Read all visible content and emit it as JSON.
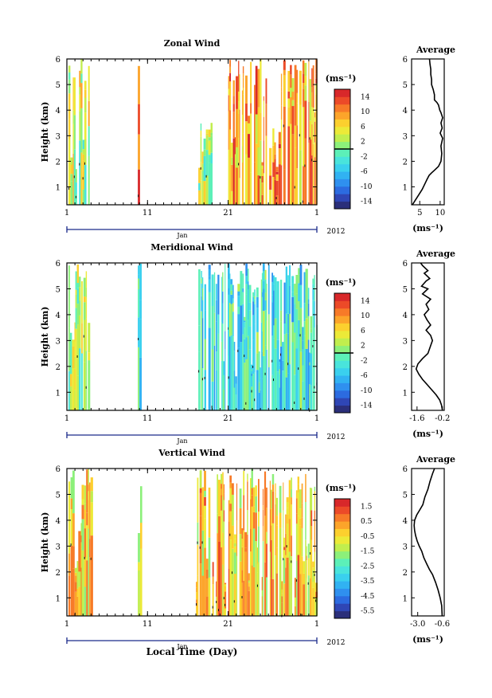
{
  "figure": {
    "year_label": "2012",
    "month_label": "Jan",
    "xlabel": "Local Time (Day)"
  },
  "panels": [
    {
      "title": "Zonal Wind",
      "ylabel": "Height (km)",
      "unit": "(ms⁻¹)",
      "avg_title": "Average",
      "avg_xlabel": "(ms⁻¹)",
      "x_ticks": [
        "1",
        "11",
        "21",
        "1"
      ],
      "y_ticks": [
        "1",
        "2",
        "3",
        "4",
        "5",
        "6"
      ],
      "cbar_ticks": [
        "14",
        "10",
        "6",
        "2",
        "-2",
        "-6",
        "-10",
        "-14"
      ],
      "avg_x_ticks": [
        "5",
        "10"
      ]
    },
    {
      "title": "Meridional Wind",
      "ylabel": "Height (km)",
      "unit": "(ms⁻¹)",
      "avg_title": "Average",
      "avg_xlabel": "(ms⁻¹)",
      "x_ticks": [
        "1",
        "11",
        "21",
        "1"
      ],
      "y_ticks": [
        "1",
        "2",
        "3",
        "4",
        "5",
        "6"
      ],
      "cbar_ticks": [
        "14",
        "10",
        "6",
        "2",
        "-2",
        "-6",
        "-10",
        "-14"
      ],
      "avg_x_ticks": [
        "-1.6",
        "-0.2"
      ]
    },
    {
      "title": "Vertical Wind",
      "ylabel": "Height (km)",
      "unit": "(ms⁻¹)",
      "avg_title": "Average",
      "avg_xlabel": "(ms⁻¹)",
      "x_ticks": [
        "1",
        "11",
        "21",
        "1"
      ],
      "y_ticks": [
        "1",
        "2",
        "3",
        "4",
        "5",
        "6"
      ],
      "cbar_ticks": [
        "1.5",
        "0.5",
        "-0.5",
        "-1.5",
        "-2.5",
        "-3.5",
        "-4.5",
        "-5.5"
      ],
      "avg_x_ticks": [
        "-3.0",
        "-0.6"
      ]
    }
  ],
  "chart_data": [
    {
      "type": "heatmap",
      "title": "Zonal Wind",
      "xlabel": "",
      "ylabel": "Height (km)",
      "xlim": [
        1,
        32
      ],
      "ylim": [
        0.3,
        6.0
      ],
      "colorbar": {
        "label": "(ms⁻¹)",
        "range": [
          -16,
          16
        ],
        "ticks": [
          14,
          10,
          6,
          2,
          -2,
          -6,
          -10,
          -14
        ],
        "reference_line": 0
      },
      "description_values": [
        {
          "x_start": 1.2,
          "x_end": 3.8,
          "y_top": 6.0,
          "value": 3
        },
        {
          "x_start": 9.8,
          "x_end": 10.1,
          "y_top": 6.0,
          "value": 14
        },
        {
          "x_start": 17.3,
          "x_end": 19.0,
          "y_top": 3.6,
          "value": 2
        },
        {
          "x_start": 21.0,
          "x_end": 32.0,
          "y_top": 6.0,
          "value": 9
        }
      ]
    },
    {
      "type": "line",
      "title": "Average",
      "xlabel": "(ms⁻¹)",
      "ylabel": "",
      "xlim": [
        3,
        11
      ],
      "ylim": [
        0.3,
        6.0
      ],
      "series": [
        {
          "x": [
            3.2,
            4.0,
            4.8,
            5.6,
            6.2,
            6.8,
            7.3,
            7.9,
            8.6,
            9.6,
            10.2,
            10.4,
            10.2,
            10.6,
            10.0,
            10.5,
            10.2,
            10.6,
            10.2,
            9.9,
            9.6,
            9.2,
            8.6,
            8.6,
            8.3,
            7.9,
            7.9,
            7.7,
            7.7,
            7.5,
            7.4
          ],
          "y": [
            0.3,
            0.5,
            0.7,
            0.9,
            1.1,
            1.3,
            1.45,
            1.55,
            1.65,
            1.8,
            2.0,
            2.3,
            2.6,
            2.9,
            3.1,
            3.3,
            3.5,
            3.7,
            3.9,
            4.0,
            4.2,
            4.3,
            4.4,
            4.6,
            4.8,
            5.0,
            5.2,
            5.4,
            5.6,
            5.8,
            6.0
          ]
        }
      ]
    },
    {
      "type": "heatmap",
      "title": "Meridional Wind",
      "xlabel": "",
      "ylabel": "Height (km)",
      "xlim": [
        1,
        32
      ],
      "ylim": [
        0.3,
        6.0
      ],
      "colorbar": {
        "label": "(ms⁻¹)",
        "range": [
          -16,
          16
        ],
        "ticks": [
          14,
          10,
          6,
          2,
          -2,
          -6,
          -10,
          -14
        ],
        "reference_line": 0
      },
      "description_values": [
        {
          "x_start": 1.2,
          "x_end": 3.8,
          "y_top": 6.0,
          "value": 2
        },
        {
          "x_start": 9.8,
          "x_end": 10.1,
          "y_top": 6.0,
          "value": -1
        },
        {
          "x_start": 17.3,
          "x_end": 21.0,
          "y_top": 6.0,
          "value": -4
        },
        {
          "x_start": 21.0,
          "x_end": 32.0,
          "y_top": 6.0,
          "value": -3
        }
      ]
    },
    {
      "type": "line",
      "title": "Average",
      "xlabel": "(ms⁻¹)",
      "ylabel": "",
      "xlim": [
        -1.9,
        -0.1
      ],
      "ylim": [
        0.3,
        6.0
      ],
      "series": [
        {
          "x": [
            -0.2,
            -0.25,
            -0.35,
            -0.55,
            -0.8,
            -1.05,
            -1.3,
            -1.5,
            -1.65,
            -1.55,
            -1.3,
            -1.0,
            -0.85,
            -0.75,
            -0.85,
            -1.1,
            -0.85,
            -1.05,
            -1.2,
            -0.95,
            -1.1,
            -0.85,
            -1.3,
            -1.0,
            -1.35,
            -1.1,
            -0.9,
            -1.2,
            -1.0,
            -1.3,
            -1.4
          ],
          "y": [
            0.3,
            0.5,
            0.7,
            0.9,
            1.1,
            1.3,
            1.5,
            1.7,
            1.9,
            2.1,
            2.3,
            2.5,
            2.8,
            3.0,
            3.2,
            3.4,
            3.6,
            3.8,
            4.0,
            4.2,
            4.4,
            4.6,
            4.8,
            5.0,
            5.1,
            5.3,
            5.4,
            5.6,
            5.7,
            5.9,
            6.0
          ]
        }
      ]
    },
    {
      "type": "heatmap",
      "title": "Vertical Wind",
      "xlabel": "Local Time (Day)",
      "ylabel": "Height (km)",
      "xlim": [
        1,
        32
      ],
      "ylim": [
        0.3,
        6.0
      ],
      "colorbar": {
        "label": "(ms⁻¹)",
        "range": [
          -6,
          2
        ],
        "ticks": [
          1.5,
          0.5,
          -0.5,
          -1.5,
          -2.5,
          -3.5,
          -4.5,
          -5.5
        ]
      },
      "description_values": [
        {
          "x_start": 1.2,
          "x_end": 4.0,
          "y_top": 6.0,
          "value": -0.5
        },
        {
          "x_start": 9.8,
          "x_end": 10.1,
          "y_top": 6.0,
          "value": -1.5
        },
        {
          "x_start": 17.0,
          "x_end": 32.0,
          "y_top": 6.0,
          "value": -0.3
        }
      ]
    },
    {
      "type": "line",
      "title": "Average",
      "xlabel": "(ms⁻¹)",
      "ylabel": "",
      "xlim": [
        -3.6,
        -0.4
      ],
      "ylim": [
        0.3,
        6.0
      ],
      "series": [
        {
          "x": [
            -0.6,
            -0.65,
            -0.8,
            -1.0,
            -1.25,
            -1.55,
            -1.85,
            -2.1,
            -2.4,
            -2.6,
            -2.85,
            -3.05,
            -3.2,
            -3.3,
            -3.35,
            -3.3,
            -3.1,
            -2.8,
            -2.5,
            -2.3,
            -2.0,
            -1.8,
            -1.55,
            -1.35
          ],
          "y": [
            0.3,
            0.7,
            1.0,
            1.3,
            1.6,
            1.9,
            2.1,
            2.3,
            2.55,
            2.8,
            3.0,
            3.2,
            3.4,
            3.6,
            3.8,
            4.0,
            4.2,
            4.4,
            4.6,
            4.9,
            5.2,
            5.5,
            5.8,
            6.0
          ]
        }
      ]
    }
  ]
}
